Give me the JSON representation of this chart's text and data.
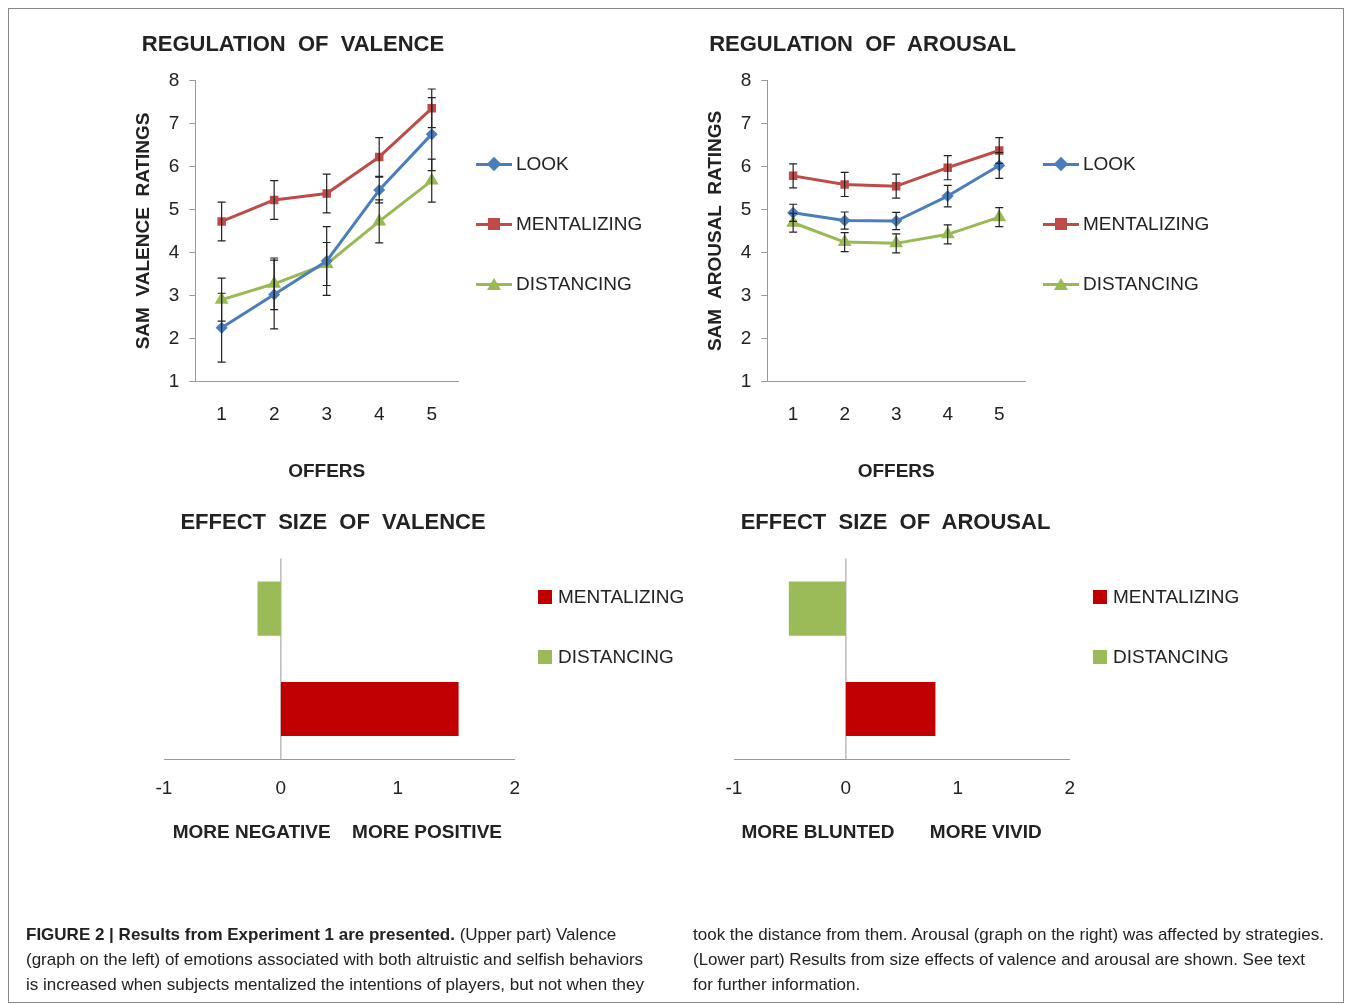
{
  "chart_data": [
    {
      "type": "line",
      "title": "REGULATION  OF  VALENCE",
      "xlabel": "OFFERS",
      "ylabel": "SAM  VALENCE  RATINGS",
      "categories": [
        "1",
        "2",
        "3",
        "4",
        "5"
      ],
      "ylim": [
        1,
        8
      ],
      "yticks": [
        1,
        2,
        3,
        4,
        5,
        6,
        7,
        8
      ],
      "grid": false,
      "legend": "right",
      "series": [
        {
          "name": "LOOK",
          "color": "#4a7ebb",
          "marker": "diamond",
          "values": [
            2.25,
            3.02,
            3.8,
            5.45,
            6.75
          ],
          "errors": [
            0.8,
            0.8,
            0.8,
            0.3,
            0.85
          ]
        },
        {
          "name": "MENTALIZING",
          "color": "#be4b48",
          "marker": "square",
          "values": [
            4.72,
            5.22,
            5.37,
            6.22,
            7.35
          ],
          "errors": [
            0.45,
            0.45,
            0.45,
            0.45,
            0.45
          ]
        },
        {
          "name": "DISTANCING",
          "color": "#98b954",
          "marker": "triangle",
          "values": [
            2.9,
            3.27,
            3.73,
            4.72,
            5.67
          ],
          "errors": [
            0.5,
            0.6,
            0.5,
            0.5,
            0.5
          ]
        }
      ]
    },
    {
      "type": "line",
      "title": "REGULATION  OF  AROUSAL",
      "xlabel": "OFFERS",
      "ylabel": "SAM  AROUSAL  RATINGS",
      "categories": [
        "1",
        "2",
        "3",
        "4",
        "5"
      ],
      "ylim": [
        1,
        8
      ],
      "yticks": [
        1,
        2,
        3,
        4,
        5,
        6,
        7,
        8
      ],
      "grid": false,
      "legend": "right",
      "series": [
        {
          "name": "LOOK",
          "color": "#4a7ebb",
          "marker": "diamond",
          "values": [
            4.92,
            4.74,
            4.73,
            5.31,
            6.02
          ],
          "errors": [
            0.2,
            0.2,
            0.2,
            0.25,
            0.3
          ]
        },
        {
          "name": "MENTALIZING",
          "color": "#be4b48",
          "marker": "square",
          "values": [
            5.78,
            5.58,
            5.54,
            5.97,
            6.37
          ],
          "errors": [
            0.28,
            0.28,
            0.28,
            0.28,
            0.3
          ]
        },
        {
          "name": "DISTANCING",
          "color": "#98b954",
          "marker": "triangle",
          "values": [
            4.69,
            4.24,
            4.21,
            4.42,
            4.82
          ],
          "errors": [
            0.22,
            0.22,
            0.22,
            0.22,
            0.22
          ]
        }
      ]
    },
    {
      "type": "bar",
      "orientation": "horizontal",
      "title": "EFFECT  SIZE  OF  VALENCE",
      "categories": [
        null,
        null
      ],
      "xlim": [
        -1,
        2
      ],
      "xticks": [
        -1,
        0,
        1,
        2
      ],
      "grid": false,
      "legend": "right",
      "ref_lines": [
        {
          "axis": "x",
          "value": 0,
          "color": "#999999"
        }
      ],
      "annotations": [
        "MORE NEGATIVE",
        "MORE POSITIVE"
      ],
      "series": [
        {
          "name": "MENTALIZING",
          "color": "#c00000",
          "values": [
            null,
            1.52
          ]
        },
        {
          "name": "DISTANCING",
          "color": "#9bbb59",
          "values": [
            -0.2,
            null
          ]
        }
      ]
    },
    {
      "type": "bar",
      "orientation": "horizontal",
      "title": "EFFECT  SIZE  OF  AROUSAL",
      "categories": [
        null,
        null
      ],
      "xlim": [
        -1,
        2
      ],
      "xticks": [
        -1,
        0,
        1,
        2
      ],
      "grid": false,
      "legend": "right",
      "ref_lines": [
        {
          "axis": "x",
          "value": 0,
          "color": "#999999"
        }
      ],
      "annotations": [
        "MORE BLUNTED",
        "MORE VIVID"
      ],
      "series": [
        {
          "name": "MENTALIZING",
          "color": "#c00000",
          "values": [
            null,
            0.8
          ]
        },
        {
          "name": "DISTANCING",
          "color": "#9bbb59",
          "values": [
            -0.51,
            null
          ]
        }
      ]
    },
    {
      "type": "other",
      "annotations": [
        "FIGURE 2 | Results from Experiment 1 are presented.",
        "(Upper part) Valence (graph on the left) of emotions associated with both altruistic and selfish behaviors is increased when subjects mentalized the intentions of players, but not when they took the distance from them. Arousal (graph on the right) was affected by strategies. (Lower part) Results from size effects of valence and arousal are shown. See text for further information."
      ]
    }
  ]
}
